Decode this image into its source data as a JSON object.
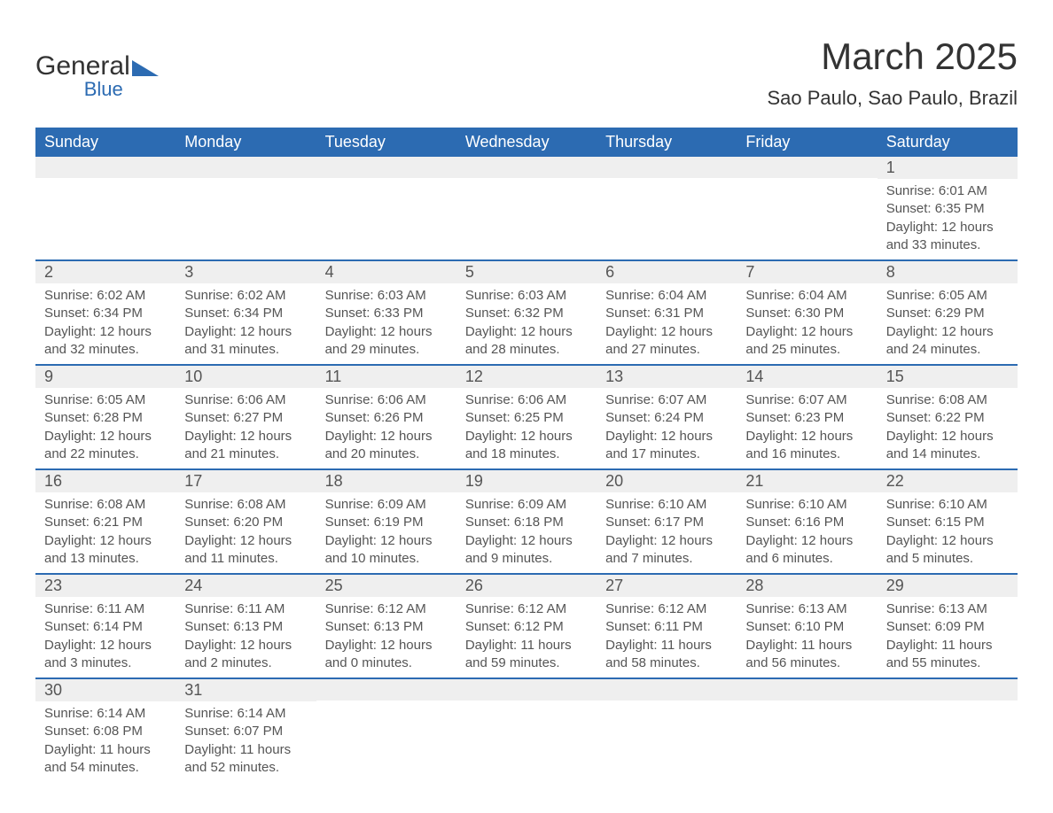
{
  "logo": {
    "general": "General",
    "blue": "Blue"
  },
  "title": "March 2025",
  "location": "Sao Paulo, Sao Paulo, Brazil",
  "colors": {
    "header_bg": "#2c6bb2",
    "header_text": "#ffffff",
    "daynum_bg": "#efefef",
    "text": "#555555",
    "border": "#2c6bb2"
  },
  "day_headers": [
    "Sunday",
    "Monday",
    "Tuesday",
    "Wednesday",
    "Thursday",
    "Friday",
    "Saturday"
  ],
  "weeks": [
    [
      {
        "empty": true
      },
      {
        "empty": true
      },
      {
        "empty": true
      },
      {
        "empty": true
      },
      {
        "empty": true
      },
      {
        "empty": true
      },
      {
        "day": "1",
        "sunrise": "Sunrise: 6:01 AM",
        "sunset": "Sunset: 6:35 PM",
        "daylight1": "Daylight: 12 hours",
        "daylight2": "and 33 minutes."
      }
    ],
    [
      {
        "day": "2",
        "sunrise": "Sunrise: 6:02 AM",
        "sunset": "Sunset: 6:34 PM",
        "daylight1": "Daylight: 12 hours",
        "daylight2": "and 32 minutes."
      },
      {
        "day": "3",
        "sunrise": "Sunrise: 6:02 AM",
        "sunset": "Sunset: 6:34 PM",
        "daylight1": "Daylight: 12 hours",
        "daylight2": "and 31 minutes."
      },
      {
        "day": "4",
        "sunrise": "Sunrise: 6:03 AM",
        "sunset": "Sunset: 6:33 PM",
        "daylight1": "Daylight: 12 hours",
        "daylight2": "and 29 minutes."
      },
      {
        "day": "5",
        "sunrise": "Sunrise: 6:03 AM",
        "sunset": "Sunset: 6:32 PM",
        "daylight1": "Daylight: 12 hours",
        "daylight2": "and 28 minutes."
      },
      {
        "day": "6",
        "sunrise": "Sunrise: 6:04 AM",
        "sunset": "Sunset: 6:31 PM",
        "daylight1": "Daylight: 12 hours",
        "daylight2": "and 27 minutes."
      },
      {
        "day": "7",
        "sunrise": "Sunrise: 6:04 AM",
        "sunset": "Sunset: 6:30 PM",
        "daylight1": "Daylight: 12 hours",
        "daylight2": "and 25 minutes."
      },
      {
        "day": "8",
        "sunrise": "Sunrise: 6:05 AM",
        "sunset": "Sunset: 6:29 PM",
        "daylight1": "Daylight: 12 hours",
        "daylight2": "and 24 minutes."
      }
    ],
    [
      {
        "day": "9",
        "sunrise": "Sunrise: 6:05 AM",
        "sunset": "Sunset: 6:28 PM",
        "daylight1": "Daylight: 12 hours",
        "daylight2": "and 22 minutes."
      },
      {
        "day": "10",
        "sunrise": "Sunrise: 6:06 AM",
        "sunset": "Sunset: 6:27 PM",
        "daylight1": "Daylight: 12 hours",
        "daylight2": "and 21 minutes."
      },
      {
        "day": "11",
        "sunrise": "Sunrise: 6:06 AM",
        "sunset": "Sunset: 6:26 PM",
        "daylight1": "Daylight: 12 hours",
        "daylight2": "and 20 minutes."
      },
      {
        "day": "12",
        "sunrise": "Sunrise: 6:06 AM",
        "sunset": "Sunset: 6:25 PM",
        "daylight1": "Daylight: 12 hours",
        "daylight2": "and 18 minutes."
      },
      {
        "day": "13",
        "sunrise": "Sunrise: 6:07 AM",
        "sunset": "Sunset: 6:24 PM",
        "daylight1": "Daylight: 12 hours",
        "daylight2": "and 17 minutes."
      },
      {
        "day": "14",
        "sunrise": "Sunrise: 6:07 AM",
        "sunset": "Sunset: 6:23 PM",
        "daylight1": "Daylight: 12 hours",
        "daylight2": "and 16 minutes."
      },
      {
        "day": "15",
        "sunrise": "Sunrise: 6:08 AM",
        "sunset": "Sunset: 6:22 PM",
        "daylight1": "Daylight: 12 hours",
        "daylight2": "and 14 minutes."
      }
    ],
    [
      {
        "day": "16",
        "sunrise": "Sunrise: 6:08 AM",
        "sunset": "Sunset: 6:21 PM",
        "daylight1": "Daylight: 12 hours",
        "daylight2": "and 13 minutes."
      },
      {
        "day": "17",
        "sunrise": "Sunrise: 6:08 AM",
        "sunset": "Sunset: 6:20 PM",
        "daylight1": "Daylight: 12 hours",
        "daylight2": "and 11 minutes."
      },
      {
        "day": "18",
        "sunrise": "Sunrise: 6:09 AM",
        "sunset": "Sunset: 6:19 PM",
        "daylight1": "Daylight: 12 hours",
        "daylight2": "and 10 minutes."
      },
      {
        "day": "19",
        "sunrise": "Sunrise: 6:09 AM",
        "sunset": "Sunset: 6:18 PM",
        "daylight1": "Daylight: 12 hours",
        "daylight2": "and 9 minutes."
      },
      {
        "day": "20",
        "sunrise": "Sunrise: 6:10 AM",
        "sunset": "Sunset: 6:17 PM",
        "daylight1": "Daylight: 12 hours",
        "daylight2": "and 7 minutes."
      },
      {
        "day": "21",
        "sunrise": "Sunrise: 6:10 AM",
        "sunset": "Sunset: 6:16 PM",
        "daylight1": "Daylight: 12 hours",
        "daylight2": "and 6 minutes."
      },
      {
        "day": "22",
        "sunrise": "Sunrise: 6:10 AM",
        "sunset": "Sunset: 6:15 PM",
        "daylight1": "Daylight: 12 hours",
        "daylight2": "and 5 minutes."
      }
    ],
    [
      {
        "day": "23",
        "sunrise": "Sunrise: 6:11 AM",
        "sunset": "Sunset: 6:14 PM",
        "daylight1": "Daylight: 12 hours",
        "daylight2": "and 3 minutes."
      },
      {
        "day": "24",
        "sunrise": "Sunrise: 6:11 AM",
        "sunset": "Sunset: 6:13 PM",
        "daylight1": "Daylight: 12 hours",
        "daylight2": "and 2 minutes."
      },
      {
        "day": "25",
        "sunrise": "Sunrise: 6:12 AM",
        "sunset": "Sunset: 6:13 PM",
        "daylight1": "Daylight: 12 hours",
        "daylight2": "and 0 minutes."
      },
      {
        "day": "26",
        "sunrise": "Sunrise: 6:12 AM",
        "sunset": "Sunset: 6:12 PM",
        "daylight1": "Daylight: 11 hours",
        "daylight2": "and 59 minutes."
      },
      {
        "day": "27",
        "sunrise": "Sunrise: 6:12 AM",
        "sunset": "Sunset: 6:11 PM",
        "daylight1": "Daylight: 11 hours",
        "daylight2": "and 58 minutes."
      },
      {
        "day": "28",
        "sunrise": "Sunrise: 6:13 AM",
        "sunset": "Sunset: 6:10 PM",
        "daylight1": "Daylight: 11 hours",
        "daylight2": "and 56 minutes."
      },
      {
        "day": "29",
        "sunrise": "Sunrise: 6:13 AM",
        "sunset": "Sunset: 6:09 PM",
        "daylight1": "Daylight: 11 hours",
        "daylight2": "and 55 minutes."
      }
    ],
    [
      {
        "day": "30",
        "sunrise": "Sunrise: 6:14 AM",
        "sunset": "Sunset: 6:08 PM",
        "daylight1": "Daylight: 11 hours",
        "daylight2": "and 54 minutes."
      },
      {
        "day": "31",
        "sunrise": "Sunrise: 6:14 AM",
        "sunset": "Sunset: 6:07 PM",
        "daylight1": "Daylight: 11 hours",
        "daylight2": "and 52 minutes."
      },
      {
        "empty": true
      },
      {
        "empty": true
      },
      {
        "empty": true
      },
      {
        "empty": true
      },
      {
        "empty": true
      }
    ]
  ]
}
